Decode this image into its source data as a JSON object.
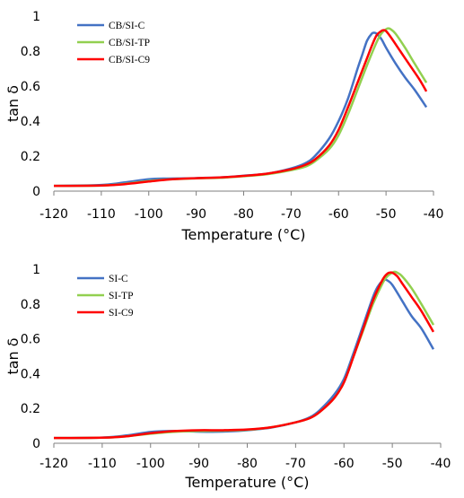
{
  "chart_data": [
    {
      "type": "line",
      "xlabel": "Temperature (°C)",
      "ylabel": "tan δ",
      "xlim": [
        -120,
        -40
      ],
      "ylim": [
        0,
        1
      ],
      "x_ticks": [
        -120,
        -110,
        -100,
        -90,
        -80,
        -70,
        -60,
        -50,
        -40
      ],
      "y_ticks": [
        0,
        0.2,
        0.4,
        0.6,
        0.8,
        1
      ],
      "y_tick_labels": [
        "0",
        "0.2",
        "0.4",
        "0.6",
        "0.8",
        "1"
      ],
      "grid": false,
      "legend_position": "top-left",
      "series": [
        {
          "name": "CB/SI-C",
          "color": "#4472C4",
          "x": [
            -120,
            -110,
            -105,
            -100,
            -96,
            -92,
            -88,
            -85,
            -80,
            -75,
            -70,
            -67,
            -65,
            -62,
            -60,
            -58,
            -56,
            -55,
            -54,
            -53,
            -52.5,
            -52,
            -51,
            -50,
            -48,
            -46,
            -44,
            -41.5
          ],
          "y": [
            0.03,
            0.035,
            0.05,
            0.068,
            0.072,
            0.073,
            0.076,
            0.078,
            0.088,
            0.1,
            0.13,
            0.16,
            0.2,
            0.3,
            0.4,
            0.53,
            0.7,
            0.78,
            0.86,
            0.9,
            0.905,
            0.9,
            0.87,
            0.82,
            0.73,
            0.65,
            0.58,
            0.48
          ]
        },
        {
          "name": "CB/SI-TP",
          "color": "#92D050",
          "x": [
            -120,
            -110,
            -105,
            -100,
            -95,
            -90,
            -85,
            -80,
            -75,
            -70,
            -67,
            -65,
            -62,
            -60,
            -58,
            -56,
            -54,
            -52,
            -51,
            -50,
            -49.5,
            -49,
            -48,
            -46,
            -44,
            -41.5
          ],
          "y": [
            0.03,
            0.032,
            0.042,
            0.058,
            0.068,
            0.073,
            0.076,
            0.085,
            0.097,
            0.12,
            0.14,
            0.17,
            0.24,
            0.32,
            0.44,
            0.58,
            0.72,
            0.85,
            0.9,
            0.925,
            0.93,
            0.925,
            0.9,
            0.82,
            0.73,
            0.62
          ]
        },
        {
          "name": "CB/SI-C9",
          "color": "#FF0000",
          "x": [
            -120,
            -110,
            -105,
            -100,
            -95,
            -90,
            -85,
            -80,
            -75,
            -70,
            -67,
            -65,
            -62,
            -60,
            -58,
            -56,
            -54,
            -53,
            -52,
            -51,
            -50.5,
            -50,
            -49,
            -47,
            -45,
            -43,
            -41.5
          ],
          "y": [
            0.03,
            0.032,
            0.04,
            0.055,
            0.068,
            0.074,
            0.078,
            0.087,
            0.1,
            0.125,
            0.15,
            0.18,
            0.26,
            0.35,
            0.48,
            0.62,
            0.76,
            0.83,
            0.89,
            0.915,
            0.92,
            0.915,
            0.88,
            0.8,
            0.72,
            0.64,
            0.57
          ]
        }
      ]
    },
    {
      "type": "line",
      "xlabel": "Temperature (°C)",
      "ylabel": "tan δ",
      "xlim": [
        -120,
        -40
      ],
      "ylim": [
        0,
        1
      ],
      "x_ticks": [
        -120,
        -110,
        -100,
        -90,
        -80,
        -70,
        -60,
        -50,
        -40
      ],
      "y_ticks": [
        0,
        0.2,
        0.4,
        0.6,
        0.8,
        1
      ],
      "y_tick_labels": [
        "0",
        "0.2",
        "0.4",
        "0.6",
        "0.8",
        "1"
      ],
      "grid": false,
      "legend_position": "top-left",
      "series": [
        {
          "name": "SI-C",
          "color": "#4472C4",
          "x": [
            -120,
            -110,
            -105,
            -100,
            -96,
            -92,
            -88,
            -85,
            -80,
            -75,
            -70,
            -67,
            -65,
            -62,
            -60,
            -58,
            -56,
            -54,
            -53,
            -52,
            -51.5,
            -51,
            -50,
            -48,
            -46,
            -44,
            -41.5
          ],
          "y": [
            0.03,
            0.033,
            0.045,
            0.065,
            0.07,
            0.068,
            0.066,
            0.067,
            0.075,
            0.09,
            0.12,
            0.15,
            0.19,
            0.28,
            0.37,
            0.52,
            0.68,
            0.84,
            0.9,
            0.935,
            0.94,
            0.935,
            0.91,
            0.82,
            0.73,
            0.66,
            0.54
          ]
        },
        {
          "name": "SI-TP",
          "color": "#92D050",
          "x": [
            -120,
            -110,
            -105,
            -100,
            -95,
            -90,
            -85,
            -80,
            -75,
            -70,
            -67,
            -65,
            -62,
            -60,
            -58,
            -56,
            -54,
            -52,
            -51,
            -50,
            -49.5,
            -49,
            -48,
            -46,
            -44,
            -41.5
          ],
          "y": [
            0.03,
            0.032,
            0.04,
            0.055,
            0.066,
            0.07,
            0.072,
            0.077,
            0.092,
            0.12,
            0.145,
            0.18,
            0.26,
            0.35,
            0.5,
            0.65,
            0.8,
            0.92,
            0.96,
            0.98,
            0.985,
            0.98,
            0.96,
            0.89,
            0.8,
            0.68
          ]
        },
        {
          "name": "SI-C9",
          "color": "#FF0000",
          "x": [
            -120,
            -110,
            -105,
            -100,
            -95,
            -90,
            -85,
            -80,
            -75,
            -70,
            -67,
            -65,
            -62,
            -60,
            -58,
            -56,
            -54,
            -52,
            -51,
            -50.5,
            -50,
            -49,
            -48,
            -46,
            -44,
            -41.5
          ],
          "y": [
            0.03,
            0.032,
            0.04,
            0.058,
            0.07,
            0.075,
            0.075,
            0.079,
            0.092,
            0.12,
            0.145,
            0.18,
            0.26,
            0.35,
            0.5,
            0.66,
            0.82,
            0.94,
            0.975,
            0.98,
            0.98,
            0.96,
            0.92,
            0.84,
            0.76,
            0.64
          ]
        }
      ]
    }
  ]
}
